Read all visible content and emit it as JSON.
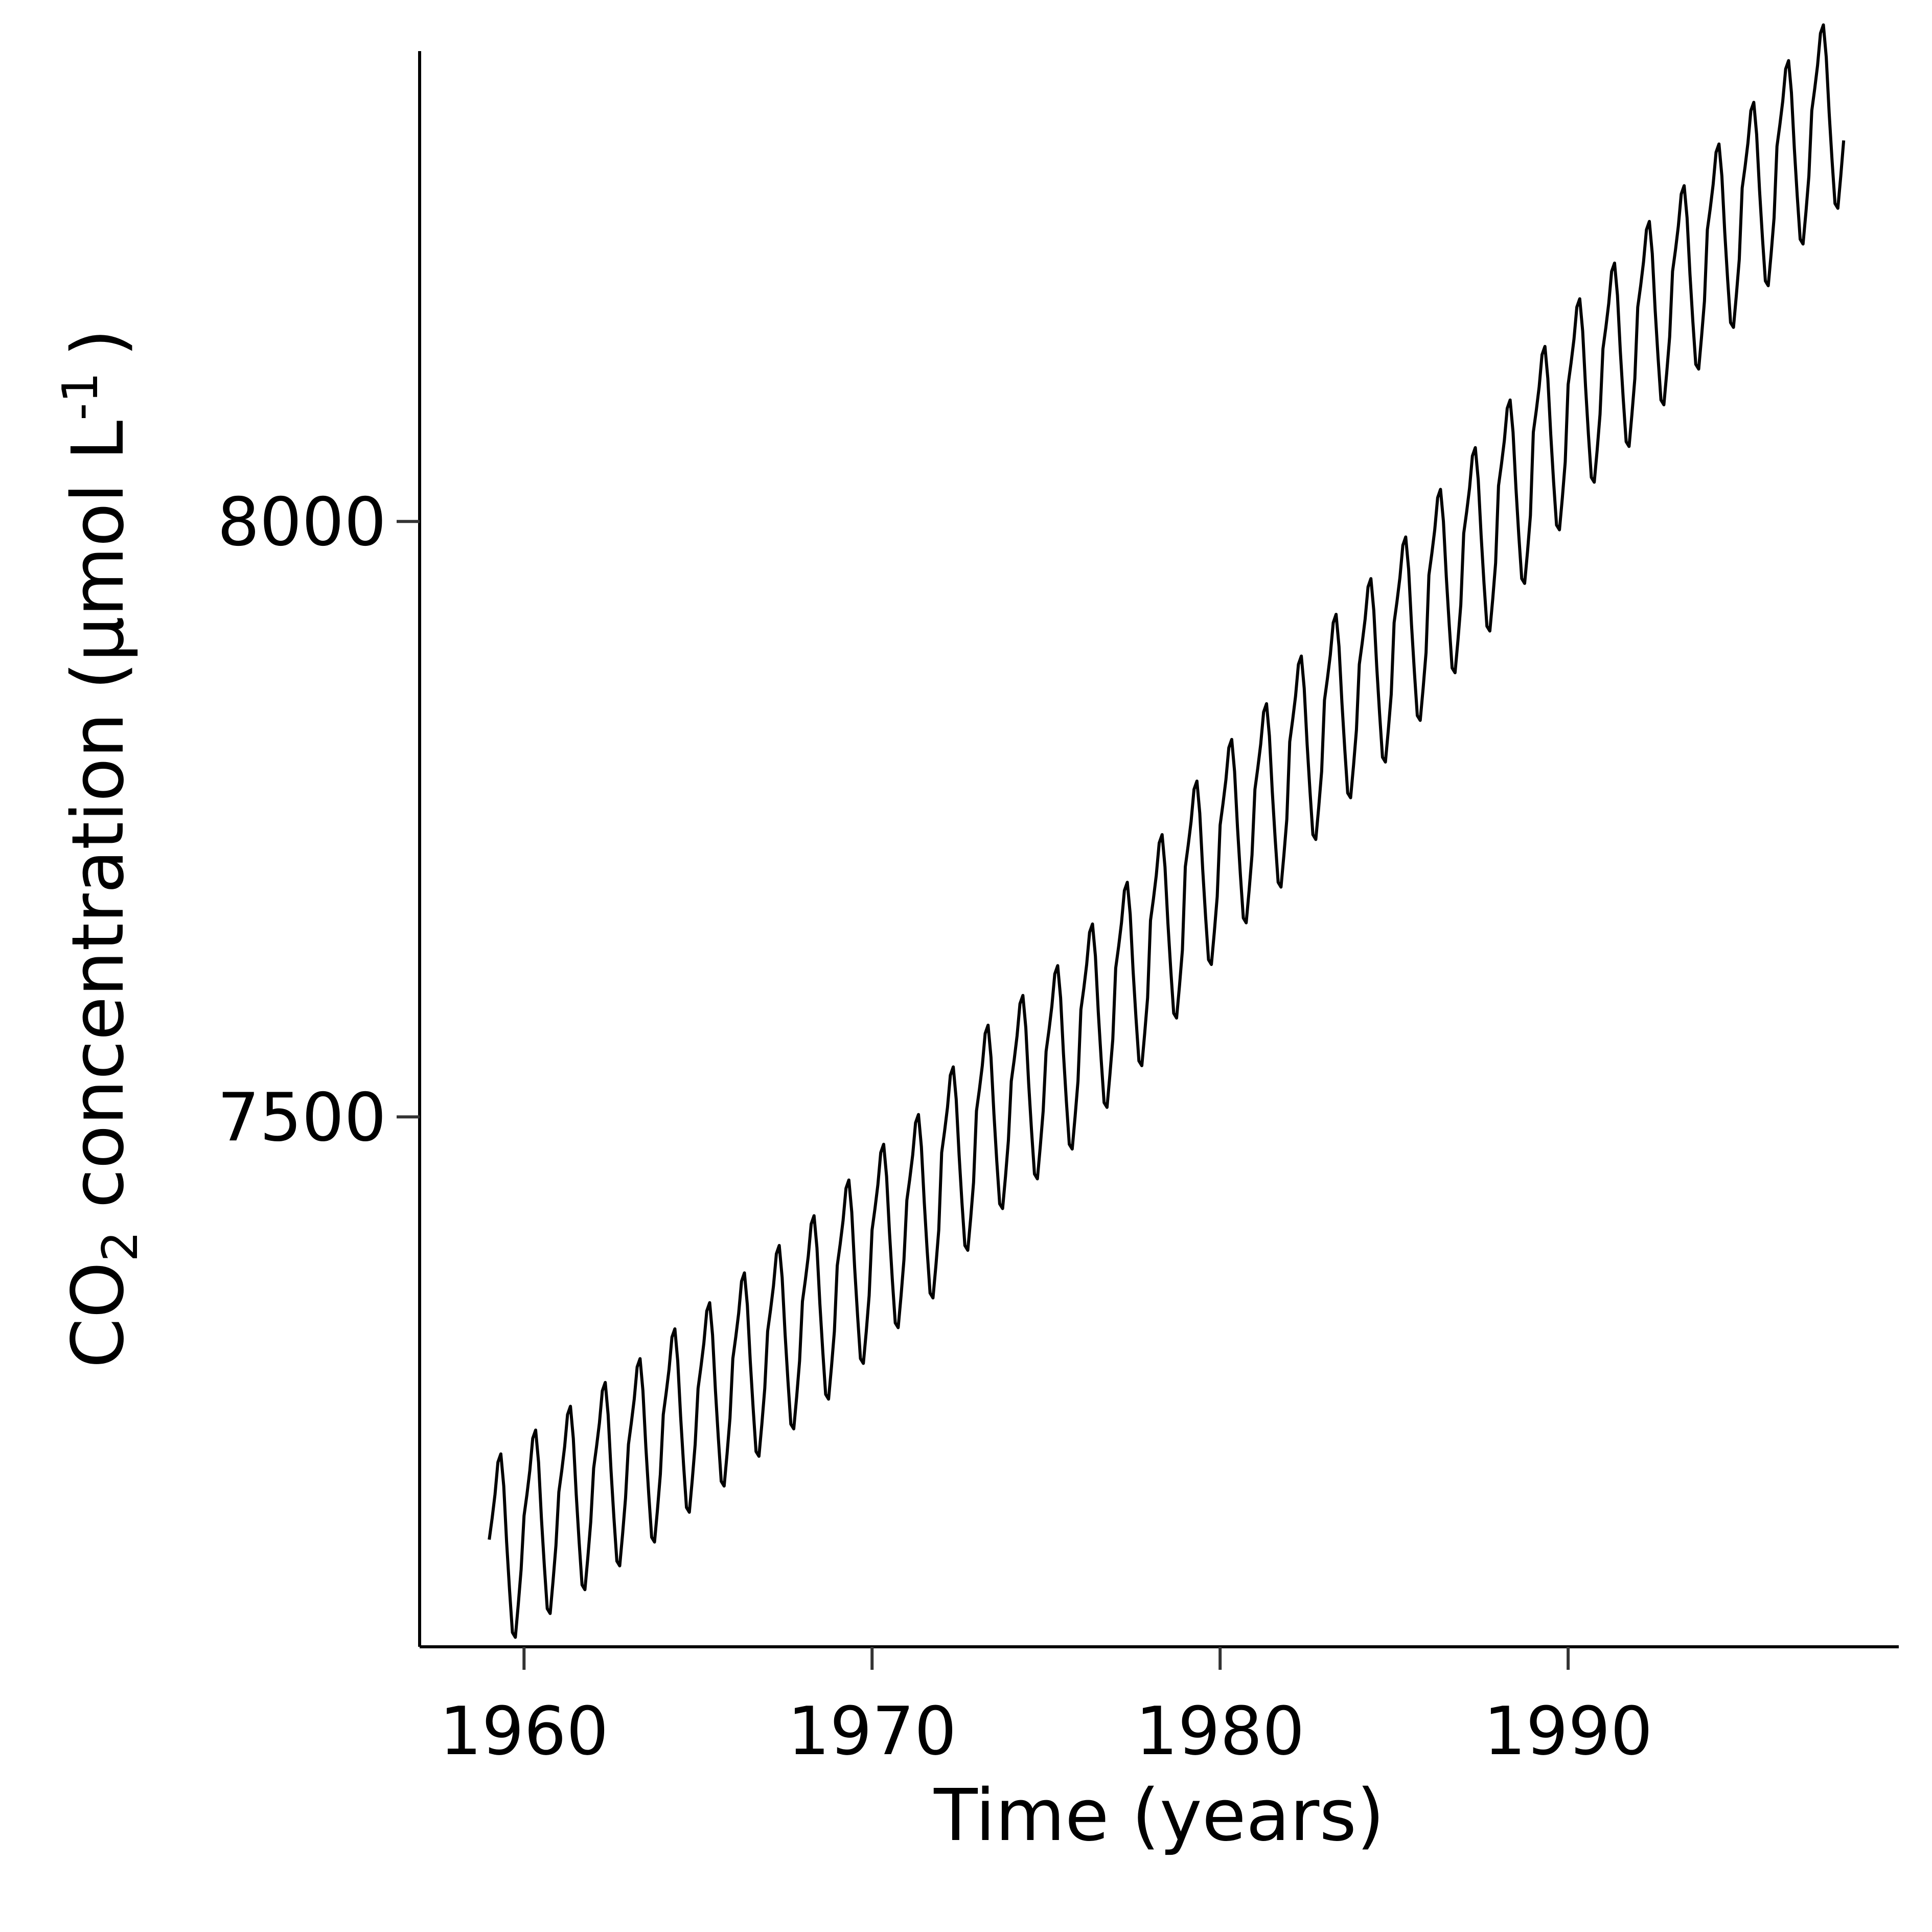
{
  "chart_data": {
    "type": "line",
    "title": "",
    "xlabel": "Time (years)",
    "ylabel": {
      "prefix": "CO",
      "subscript": "2",
      "middle": " concentration (µmol L",
      "superscript": "-1",
      "suffix": ")"
    },
    "xlim": [
      1957.0,
      1999.5
    ],
    "ylim": [
      7055,
      8395
    ],
    "xticks": [
      1960,
      1970,
      1980,
      1990
    ],
    "yticks": [
      7500,
      8000
    ],
    "xtick_labels": [
      "1960",
      "1970",
      "1980",
      "1990"
    ],
    "ytick_labels": [
      "7500",
      "8000"
    ],
    "grid": false,
    "legend": "none",
    "line_color": "#000000",
    "monthly_seasonal_offsets": [
      0,
      18,
      38,
      65,
      72,
      45,
      -2,
      -42,
      -78,
      -82,
      -55,
      -25
    ],
    "series": [
      {
        "start": "1959-01",
        "frequency": "monthly",
        "annual_mean": [
          7145,
          7165,
          7185,
          7205,
          7225,
          7250,
          7272,
          7297,
          7320,
          7345,
          7375,
          7405,
          7430,
          7470,
          7505,
          7530,
          7555,
          7590,
          7625,
          7665,
          7710,
          7745,
          7775,
          7815,
          7850,
          7880,
          7915,
          7955,
          7990,
          8030,
          8075,
          8115,
          8145,
          8180,
          8210,
          8245,
          8280,
          8315,
          8345
        ]
      }
    ]
  }
}
